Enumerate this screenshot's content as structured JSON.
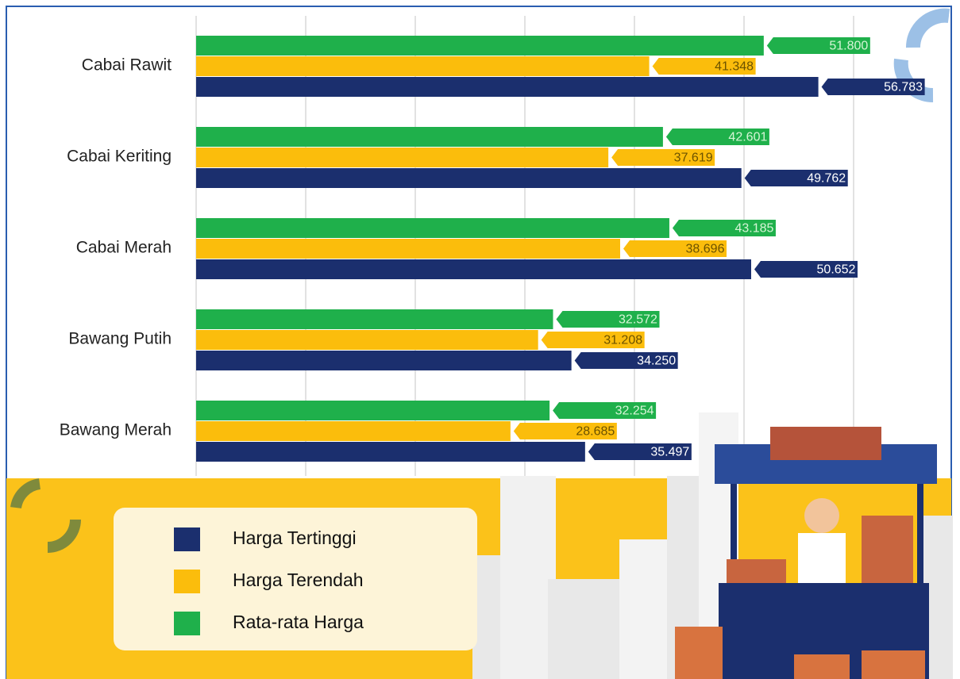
{
  "chart_data": {
    "type": "hbar",
    "categories": [
      "Cabai Rawit",
      "Cabai Keriting",
      "Cabai Merah",
      "Bawang Putih",
      "Bawang Merah"
    ],
    "series": [
      {
        "name": "Harga Tertinggi",
        "color": "#1b2f6e",
        "values": [
          56783,
          49762,
          50652,
          34250,
          35497
        ],
        "value_labels": [
          "56.783",
          "49.762",
          "50.652",
          "34.250",
          "35.497"
        ]
      },
      {
        "name": "Harga Terendah",
        "color": "#fbbd0c",
        "values": [
          41348,
          37619,
          38696,
          31208,
          28685
        ],
        "value_labels": [
          "41.348",
          "37.619",
          "38.696",
          "31.208",
          "28.685"
        ]
      },
      {
        "name": "Rata-rata Harga",
        "color": "#1fb04b",
        "values": [
          51800,
          42601,
          43185,
          32572,
          32254
        ],
        "value_labels": [
          "51.800",
          "42.601",
          "43.185",
          "32.572",
          "32.254"
        ]
      }
    ],
    "xlim": [
      0,
      60000
    ],
    "xticks": [
      0,
      10000,
      20000,
      30000,
      40000,
      50000,
      60000
    ],
    "grid": true
  }
}
